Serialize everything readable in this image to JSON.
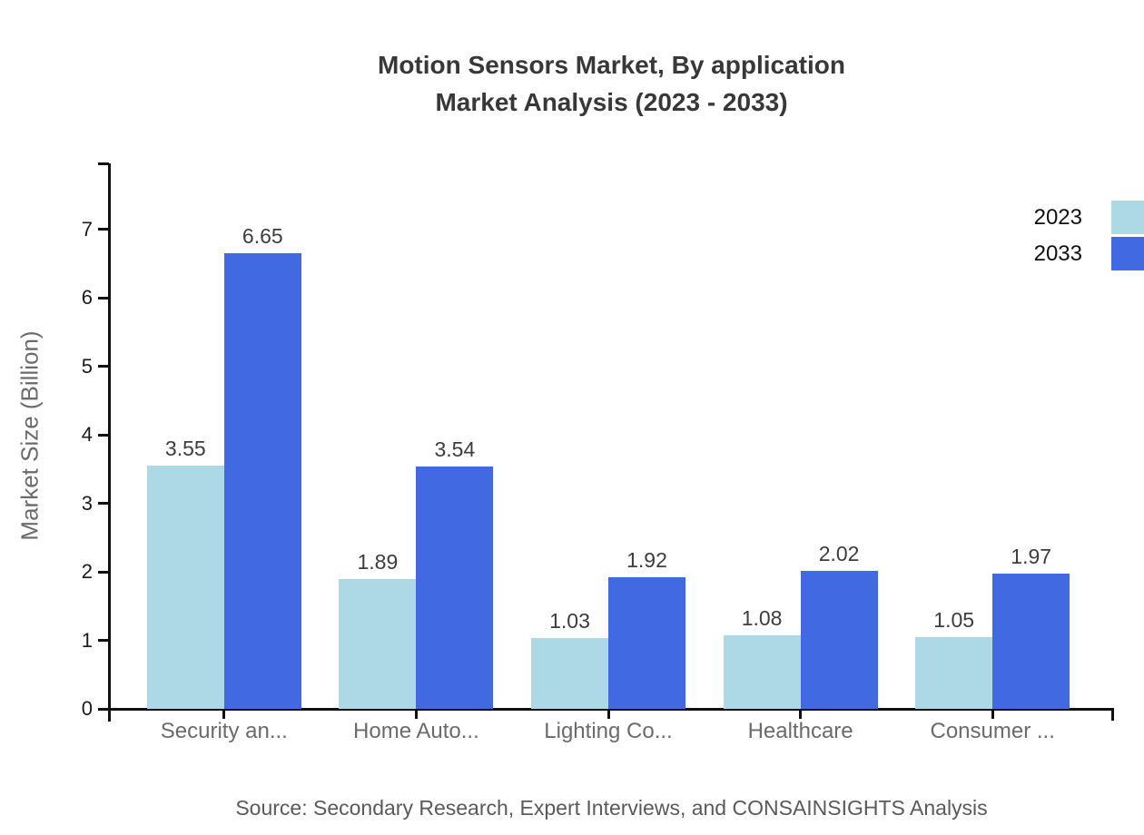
{
  "title": {
    "line1": "Motion Sensors Market, By application",
    "line2": "Market Analysis (2023 - 2033)"
  },
  "source": "Source: Secondary Research, Expert Interviews, and CONSAINSIGHTS Analysis",
  "chart_data": {
    "type": "bar",
    "categories": [
      "Security an...",
      "Home Auto...",
      "Lighting Co...",
      "Healthcare",
      "Consumer ..."
    ],
    "series": [
      {
        "name": "2023",
        "color": "#ADD8E6",
        "values": [
          3.55,
          1.89,
          1.03,
          1.08,
          1.05
        ]
      },
      {
        "name": "2033",
        "color": "#4169E1",
        "values": [
          6.65,
          3.54,
          1.92,
          2.02,
          1.97
        ]
      }
    ],
    "title": "Motion Sensors Market, By application Market Analysis (2023 - 2033)",
    "xlabel": "",
    "ylabel": "Market Size (Billion)",
    "yticks": [
      0,
      1,
      2,
      3,
      4,
      5,
      6,
      7
    ],
    "ylim": [
      0,
      7.97
    ],
    "grid": false,
    "value_labels": true,
    "legend_position": "top-right"
  }
}
